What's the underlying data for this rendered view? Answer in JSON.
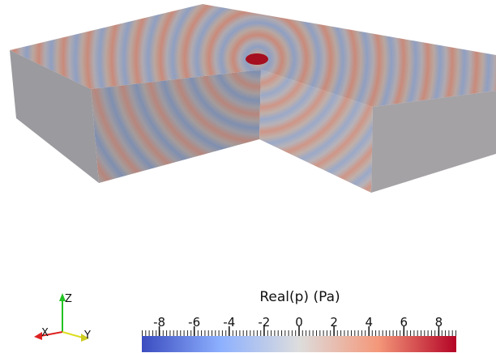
{
  "colorbar": {
    "title": "Real(p) (Pa)",
    "range": [
      -9,
      9
    ],
    "ticks": [
      -8,
      -6,
      -4,
      -2,
      0,
      2,
      4,
      6,
      8
    ]
  },
  "axes": {
    "z": "Z",
    "x": "X",
    "y": "Y"
  }
}
